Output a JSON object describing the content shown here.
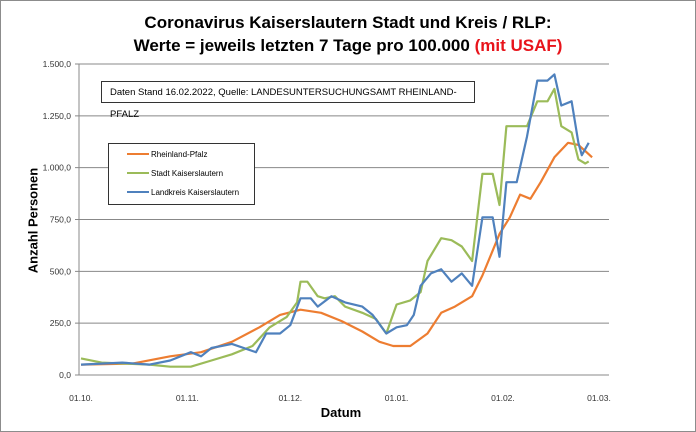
{
  "title_line1": "Coronavirus Kaiserslautern Stadt und Kreis / RLP:",
  "title_line2_black": "Werte = jeweils letzten 7 Tage pro 100.000 ",
  "title_line2_red": "(mit USAF)",
  "info_box": "Daten Stand 16.02.2022, Quelle: LANDESUNTERSUCHUNGSAMT RHEINLAND-PFALZ",
  "chart_data": {
    "type": "line",
    "xlabel": "Datum",
    "ylabel": "Anzahl Personen",
    "ylim": [
      0,
      1500
    ],
    "yticks": [
      0,
      250,
      500,
      750,
      1000,
      1250,
      1500
    ],
    "ytick_labels": [
      "0,0",
      "250,0",
      "500,0",
      "750,0",
      "1.000,0",
      "1.250,0",
      "1.500,0"
    ],
    "xlim": [
      "2021-10-01",
      "2022-03-01"
    ],
    "xticks": [
      "2021-10-01",
      "2021-11-01",
      "2021-12-01",
      "2022-01-01",
      "2022-02-01",
      "2022-03-01"
    ],
    "xtick_labels": [
      "01.10.",
      "01.11.",
      "01.12.",
      "01.01.",
      "01.02.",
      "01.03."
    ],
    "grid": "horizontal",
    "legend_placement": "left",
    "series": [
      {
        "name": "Rheinland-Pfalz",
        "color": "#ed7d31",
        "points": [
          [
            "2021-10-01",
            50
          ],
          [
            "2021-10-16",
            55
          ],
          [
            "2021-10-27",
            90
          ],
          [
            "2021-11-05",
            110
          ],
          [
            "2021-11-14",
            160
          ],
          [
            "2021-11-22",
            230
          ],
          [
            "2021-11-28",
            290
          ],
          [
            "2021-12-04",
            315
          ],
          [
            "2021-12-10",
            300
          ],
          [
            "2021-12-16",
            260
          ],
          [
            "2021-12-22",
            210
          ],
          [
            "2021-12-27",
            160
          ],
          [
            "2021-12-31",
            140
          ],
          [
            "2022-01-05",
            140
          ],
          [
            "2022-01-10",
            200
          ],
          [
            "2022-01-14",
            300
          ],
          [
            "2022-01-18",
            330
          ],
          [
            "2022-01-23",
            380
          ],
          [
            "2022-01-26",
            480
          ],
          [
            "2022-01-29",
            600
          ],
          [
            "2022-01-31",
            680
          ],
          [
            "2022-02-03",
            760
          ],
          [
            "2022-02-06",
            870
          ],
          [
            "2022-02-09",
            850
          ],
          [
            "2022-02-12",
            930
          ],
          [
            "2022-02-16",
            1050
          ],
          [
            "2022-02-20",
            1120
          ],
          [
            "2022-02-23",
            1110
          ],
          [
            "2022-02-25",
            1080
          ],
          [
            "2022-02-27",
            1050
          ]
        ]
      },
      {
        "name": "Stadt Kaiserslautern",
        "color": "#9bbb59",
        "points": [
          [
            "2021-10-01",
            80
          ],
          [
            "2021-10-07",
            60
          ],
          [
            "2021-10-21",
            50
          ],
          [
            "2021-10-27",
            40
          ],
          [
            "2021-11-02",
            40
          ],
          [
            "2021-11-08",
            70
          ],
          [
            "2021-11-14",
            100
          ],
          [
            "2021-11-20",
            140
          ],
          [
            "2021-11-25",
            230
          ],
          [
            "2021-11-30",
            280
          ],
          [
            "2021-12-03",
            350
          ],
          [
            "2021-12-04",
            450
          ],
          [
            "2021-12-06",
            450
          ],
          [
            "2021-12-09",
            380
          ],
          [
            "2021-12-11",
            370
          ],
          [
            "2021-12-14",
            380
          ],
          [
            "2021-12-17",
            330
          ],
          [
            "2021-12-22",
            300
          ],
          [
            "2021-12-26",
            270
          ],
          [
            "2021-12-29",
            200
          ],
          [
            "2022-01-01",
            340
          ],
          [
            "2022-01-05",
            360
          ],
          [
            "2022-01-08",
            400
          ],
          [
            "2022-01-10",
            550
          ],
          [
            "2022-01-14",
            660
          ],
          [
            "2022-01-17",
            650
          ],
          [
            "2022-01-20",
            620
          ],
          [
            "2022-01-23",
            550
          ],
          [
            "2022-01-26",
            970
          ],
          [
            "2022-01-29",
            970
          ],
          [
            "2022-01-31",
            820
          ],
          [
            "2022-02-02",
            1200
          ],
          [
            "2022-02-05",
            1200
          ],
          [
            "2022-02-08",
            1200
          ],
          [
            "2022-02-11",
            1320
          ],
          [
            "2022-02-14",
            1320
          ],
          [
            "2022-02-16",
            1380
          ],
          [
            "2022-02-18",
            1200
          ],
          [
            "2022-02-21",
            1170
          ],
          [
            "2022-02-23",
            1040
          ],
          [
            "2022-02-25",
            1020
          ],
          [
            "2022-02-26",
            1030
          ]
        ]
      },
      {
        "name": "Landkreis Kaiserslautern",
        "color": "#4f81bd",
        "points": [
          [
            "2021-10-01",
            50
          ],
          [
            "2021-10-13",
            60
          ],
          [
            "2021-10-21",
            50
          ],
          [
            "2021-10-27",
            70
          ],
          [
            "2021-11-02",
            110
          ],
          [
            "2021-11-05",
            90
          ],
          [
            "2021-11-08",
            130
          ],
          [
            "2021-11-14",
            150
          ],
          [
            "2021-11-21",
            110
          ],
          [
            "2021-11-24",
            200
          ],
          [
            "2021-11-28",
            200
          ],
          [
            "2021-12-01",
            240
          ],
          [
            "2021-12-04",
            370
          ],
          [
            "2021-12-07",
            370
          ],
          [
            "2021-12-09",
            330
          ],
          [
            "2021-12-13",
            380
          ],
          [
            "2021-12-17",
            350
          ],
          [
            "2021-12-22",
            330
          ],
          [
            "2021-12-25",
            290
          ],
          [
            "2021-12-29",
            200
          ],
          [
            "2022-01-01",
            230
          ],
          [
            "2022-01-04",
            240
          ],
          [
            "2022-01-06",
            290
          ],
          [
            "2022-01-08",
            430
          ],
          [
            "2022-01-11",
            490
          ],
          [
            "2022-01-14",
            510
          ],
          [
            "2022-01-17",
            450
          ],
          [
            "2022-01-20",
            490
          ],
          [
            "2022-01-23",
            430
          ],
          [
            "2022-01-26",
            760
          ],
          [
            "2022-01-29",
            760
          ],
          [
            "2022-01-31",
            570
          ],
          [
            "2022-02-02",
            930
          ],
          [
            "2022-02-05",
            930
          ],
          [
            "2022-02-08",
            1150
          ],
          [
            "2022-02-11",
            1420
          ],
          [
            "2022-02-14",
            1420
          ],
          [
            "2022-02-16",
            1450
          ],
          [
            "2022-02-18",
            1300
          ],
          [
            "2022-02-21",
            1320
          ],
          [
            "2022-02-23",
            1120
          ],
          [
            "2022-02-24",
            1060
          ],
          [
            "2022-02-26",
            1120
          ]
        ]
      }
    ]
  }
}
